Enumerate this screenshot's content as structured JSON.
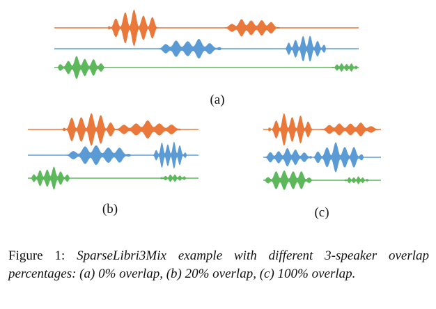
{
  "figure": {
    "colors": {
      "speaker1": "#E9783A",
      "speaker2": "#5B9BD5",
      "speaker3": "#5DB85C"
    },
    "panels": [
      {
        "id": "a",
        "label": "(a)"
      },
      {
        "id": "b",
        "label": "(b)"
      },
      {
        "id": "c",
        "label": "(c)"
      }
    ]
  },
  "caption": {
    "prefix": "Figure 1:",
    "text": "SparseLibri3Mix example with different 3-speaker overlap percentages: (a) 0% overlap, (b) 20% overlap, (c) 100% overlap."
  }
}
